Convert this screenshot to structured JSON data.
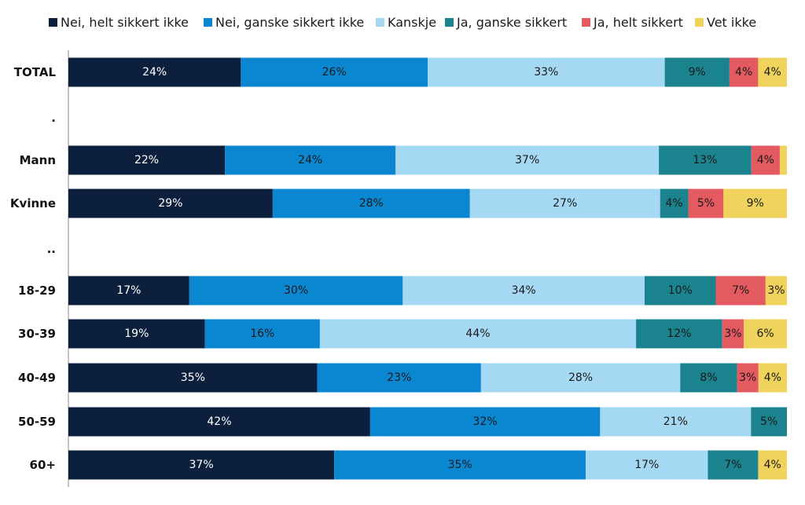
{
  "chart_data": {
    "type": "bar",
    "orientation": "horizontal",
    "stacked": true,
    "normalized_percent": true,
    "title": "",
    "xlabel": "",
    "ylabel": "",
    "xlim": [
      0,
      100
    ],
    "grid": false,
    "legend_position": "top",
    "categories": [
      "TOTAL",
      ".",
      "Mann",
      "Kvinne",
      "..",
      "18-29",
      "30-39",
      "40-49",
      "50-59",
      "60+"
    ],
    "series": [
      {
        "name": "Nei, helt sikkert ikke",
        "color": "#0c1f3d",
        "label_color": "#ffffff",
        "values": [
          24,
          null,
          22,
          29,
          null,
          17,
          19,
          35,
          42,
          37
        ],
        "labels": [
          "24%",
          "",
          "22%",
          "29%",
          "",
          "17%",
          "19%",
          "35%",
          "42%",
          "37%"
        ]
      },
      {
        "name": "Nei, ganske sikkert ikke",
        "color": "#0a87d0",
        "label_color": "#1a1a1a",
        "values": [
          26,
          null,
          24,
          28,
          null,
          30,
          16,
          23,
          32,
          35
        ],
        "labels": [
          "26%",
          "",
          "24%",
          "28%",
          "",
          "30%",
          "16%",
          "23%",
          "32%",
          "35%"
        ]
      },
      {
        "name": "Kanskje",
        "color": "#a5d8f2",
        "label_color": "#1a1a1a",
        "values": [
          33,
          null,
          37,
          27,
          null,
          34,
          44,
          28,
          21,
          17
        ],
        "labels": [
          "33%",
          "",
          "37%",
          "27%",
          "",
          "34%",
          "44%",
          "28%",
          "21%",
          "17%"
        ]
      },
      {
        "name": "Ja, ganske sikkert",
        "color": "#1a838e",
        "label_color": "#1a1a1a",
        "values": [
          9,
          null,
          13,
          4,
          null,
          10,
          12,
          8,
          5,
          7
        ],
        "labels": [
          "9%",
          "",
          "13%",
          "4%",
          "",
          "10%",
          "12%",
          "8%",
          "5%",
          "7%"
        ]
      },
      {
        "name": "Ja, helt sikkert",
        "color": "#e45a61",
        "label_color": "#1a1a1a",
        "values": [
          4,
          null,
          4,
          5,
          null,
          7,
          3,
          3,
          0,
          0
        ],
        "labels": [
          "4%",
          "",
          "4%",
          "5%",
          "",
          "7%",
          "3%",
          "3%",
          "",
          ""
        ]
      },
      {
        "name": "Vet ikke",
        "color": "#efd35c",
        "label_color": "#1a1a1a",
        "values": [
          4,
          null,
          1,
          9,
          null,
          3,
          6,
          4,
          0,
          4
        ],
        "labels": [
          "4%",
          "",
          "",
          "9%",
          "",
          "3%",
          "6%",
          "4%",
          "",
          "4%"
        ]
      }
    ]
  }
}
